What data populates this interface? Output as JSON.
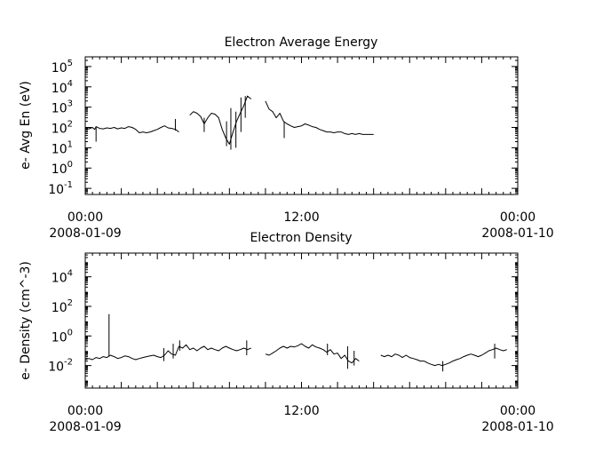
{
  "chart_data": [
    {
      "type": "line",
      "title": "Electron Average Energy",
      "ylabel": "e- Avg En (eV)",
      "xlabel": "",
      "yscale": "log",
      "ylim": [
        0.05,
        300000
      ],
      "xlim": [
        "2008-01-09 00:00",
        "2008-01-10 00:00"
      ],
      "grid": false,
      "yticks": [
        {
          "value": 0.1,
          "base": "10",
          "exp": "-1"
        },
        {
          "value": 1,
          "base": "10",
          "exp": "0"
        },
        {
          "value": 10,
          "base": "10",
          "exp": "1"
        },
        {
          "value": 100,
          "base": "10",
          "exp": "2"
        },
        {
          "value": 1000,
          "base": "10",
          "exp": "3"
        },
        {
          "value": 10000,
          "base": "10",
          "exp": "4"
        },
        {
          "value": 100000,
          "base": "10",
          "exp": "5"
        }
      ],
      "xticks": [
        {
          "value": 0,
          "time": "00:00",
          "date": "2008-01-09"
        },
        {
          "value": 12,
          "time": "12:00",
          "date": ""
        },
        {
          "value": 24,
          "time": "00:00",
          "date": "2008-01-10"
        }
      ],
      "series": [
        {
          "segments": [
            [
              [
                0,
                90
              ],
              [
                0.5,
                85
              ],
              [
                1,
                100
              ],
              [
                1.3,
                80
              ],
              [
                1.5,
                110
              ],
              [
                2,
                90
              ],
              [
                2.5,
                85
              ],
              [
                3,
                95
              ],
              [
                3.5,
                90
              ],
              [
                4,
                100
              ],
              [
                4.5,
                85
              ],
              [
                5,
                95
              ],
              [
                5.5,
                90
              ],
              [
                6,
                110
              ],
              [
                6.5,
                100
              ],
              [
                7,
                80
              ],
              [
                7.5,
                55
              ],
              [
                8,
                60
              ],
              [
                8.5,
                55
              ],
              [
                9,
                60
              ],
              [
                9.5,
                70
              ],
              [
                10,
                80
              ],
              [
                10.5,
                100
              ],
              [
                11,
                120
              ],
              [
                11.5,
                95
              ],
              [
                12,
                90
              ],
              [
                12.5,
                80
              ],
              [
                13,
                60
              ]
            ],
            [
              [
                14.5,
                400
              ],
              [
                15,
                600
              ],
              [
                15.5,
                500
              ],
              [
                16,
                350
              ],
              [
                16.5,
                150
              ],
              [
                17,
                300
              ],
              [
                17.5,
                500
              ],
              [
                18,
                450
              ],
              [
                18.5,
                300
              ],
              [
                19,
                80
              ],
              [
                19.5,
                30
              ],
              [
                20,
                15
              ],
              [
                20.5,
                60
              ],
              [
                21,
                200
              ],
              [
                21.5,
                500
              ],
              [
                22,
                1200
              ],
              [
                22.5,
                3500
              ],
              [
                23,
                2500
              ]
            ],
            [
              [
                25,
                2000
              ],
              [
                25.5,
                800
              ],
              [
                26,
                600
              ],
              [
                26.5,
                300
              ],
              [
                27,
                500
              ],
              [
                27.5,
                200
              ],
              [
                28,
                150
              ],
              [
                28.5,
                120
              ],
              [
                29,
                100
              ],
              [
                29.5,
                110
              ],
              [
                30,
                120
              ],
              [
                30.5,
                150
              ],
              [
                31,
                130
              ],
              [
                31.5,
                110
              ],
              [
                32,
                100
              ],
              [
                32.5,
                80
              ],
              [
                33,
                70
              ],
              [
                33.5,
                60
              ],
              [
                34,
                60
              ],
              [
                34.5,
                55
              ],
              [
                35,
                60
              ],
              [
                35.5,
                60
              ],
              [
                36,
                50
              ],
              [
                36.5,
                45
              ],
              [
                37,
                50
              ],
              [
                37.5,
                45
              ],
              [
                38,
                50
              ],
              [
                38.5,
                45
              ],
              [
                39,
                45
              ],
              [
                39.5,
                45
              ],
              [
                40,
                45
              ]
            ]
          ],
          "spikes": [
            {
              "x": 1.5,
              "low": 20,
              "high": 110
            },
            {
              "x": 12.5,
              "low": 70,
              "high": 260
            },
            {
              "x": 16.5,
              "low": 60,
              "high": 300
            },
            {
              "x": 19.6,
              "low": 12,
              "high": 200
            },
            {
              "x": 20.2,
              "low": 8,
              "high": 900
            },
            {
              "x": 20.9,
              "low": 10,
              "high": 600
            },
            {
              "x": 21.6,
              "low": 60,
              "high": 3000
            },
            {
              "x": 22.2,
              "low": 300,
              "high": 3500
            },
            {
              "x": 27.6,
              "low": 30,
              "high": 200
            }
          ]
        }
      ]
    },
    {
      "type": "line",
      "title": "Electron Density",
      "ylabel": "e- Density (cm^-3)",
      "xlabel": "",
      "yscale": "log",
      "ylim": [
        0.0003,
        400000
      ],
      "xlim": [
        "2008-01-09 00:00",
        "2008-01-10 00:00"
      ],
      "grid": false,
      "yticks": [
        {
          "value": 0.01,
          "base": "10",
          "exp": "-2"
        },
        {
          "value": 1,
          "base": "10",
          "exp": "0"
        },
        {
          "value": 100,
          "base": "10",
          "exp": "2"
        },
        {
          "value": 10000,
          "base": "10",
          "exp": "4"
        }
      ],
      "xticks": [
        {
          "value": 0,
          "time": "00:00",
          "date": "2008-01-09"
        },
        {
          "value": 12,
          "time": "12:00",
          "date": ""
        },
        {
          "value": 24,
          "time": "00:00",
          "date": "2008-01-10"
        }
      ],
      "series": [
        {
          "segments": [
            [
              [
                0,
                0.025
              ],
              [
                0.5,
                0.03
              ],
              [
                1,
                0.025
              ],
              [
                1.5,
                0.035
              ],
              [
                2,
                0.03
              ],
              [
                2.5,
                0.04
              ],
              [
                3,
                0.035
              ],
              [
                3.5,
                0.05
              ],
              [
                4,
                0.04
              ],
              [
                4.5,
                0.03
              ],
              [
                5,
                0.035
              ],
              [
                5.5,
                0.045
              ],
              [
                6,
                0.04
              ],
              [
                6.5,
                0.03
              ],
              [
                7,
                0.025
              ],
              [
                7.5,
                0.03
              ],
              [
                8,
                0.035
              ],
              [
                8.5,
                0.04
              ],
              [
                9,
                0.045
              ],
              [
                9.5,
                0.05
              ],
              [
                10,
                0.04
              ],
              [
                10.5,
                0.035
              ],
              [
                11,
                0.05
              ],
              [
                11.5,
                0.1
              ],
              [
                12,
                0.06
              ],
              [
                12.5,
                0.05
              ],
              [
                13,
                0.2
              ],
              [
                13.5,
                0.15
              ],
              [
                14,
                0.25
              ],
              [
                14.5,
                0.12
              ],
              [
                15,
                0.15
              ],
              [
                15.5,
                0.1
              ],
              [
                16,
                0.15
              ],
              [
                16.5,
                0.2
              ],
              [
                17,
                0.12
              ],
              [
                17.5,
                0.15
              ],
              [
                18,
                0.12
              ],
              [
                18.5,
                0.1
              ],
              [
                19,
                0.15
              ],
              [
                19.5,
                0.2
              ],
              [
                20,
                0.15
              ],
              [
                20.5,
                0.12
              ],
              [
                21,
                0.1
              ],
              [
                21.5,
                0.12
              ],
              [
                22,
                0.15
              ],
              [
                22.5,
                0.12
              ],
              [
                23,
                0.15
              ]
            ],
            [
              [
                25,
                0.06
              ],
              [
                25.5,
                0.05
              ],
              [
                26,
                0.07
              ],
              [
                26.5,
                0.1
              ],
              [
                27,
                0.15
              ],
              [
                27.5,
                0.2
              ],
              [
                28,
                0.15
              ],
              [
                28.5,
                0.2
              ],
              [
                29,
                0.18
              ],
              [
                29.5,
                0.22
              ],
              [
                30,
                0.3
              ],
              [
                30.5,
                0.2
              ],
              [
                31,
                0.15
              ],
              [
                31.5,
                0.25
              ],
              [
                32,
                0.18
              ],
              [
                32.5,
                0.15
              ],
              [
                33,
                0.12
              ],
              [
                33.5,
                0.08
              ],
              [
                34,
                0.12
              ],
              [
                34.5,
                0.06
              ],
              [
                35,
                0.07
              ],
              [
                35.5,
                0.03
              ],
              [
                36,
                0.05
              ],
              [
                36.5,
                0.02
              ],
              [
                37,
                0.015
              ],
              [
                37.5,
                0.03
              ],
              [
                38,
                0.02
              ]
            ],
            [
              [
                41,
                0.05
              ],
              [
                41.5,
                0.04
              ],
              [
                42,
                0.05
              ],
              [
                42.5,
                0.04
              ],
              [
                43,
                0.06
              ],
              [
                43.5,
                0.05
              ],
              [
                44,
                0.035
              ],
              [
                44.5,
                0.05
              ],
              [
                45,
                0.035
              ],
              [
                45.5,
                0.03
              ],
              [
                46,
                0.025
              ],
              [
                46.5,
                0.02
              ],
              [
                47,
                0.02
              ],
              [
                47.5,
                0.015
              ],
              [
                48,
                0.012
              ],
              [
                48.5,
                0.01
              ],
              [
                49,
                0.012
              ],
              [
                49.5,
                0.01
              ],
              [
                50,
                0.012
              ],
              [
                50.5,
                0.015
              ],
              [
                51,
                0.02
              ],
              [
                51.5,
                0.025
              ],
              [
                52,
                0.03
              ],
              [
                52.5,
                0.04
              ],
              [
                53,
                0.05
              ],
              [
                53.5,
                0.06
              ],
              [
                54,
                0.05
              ],
              [
                54.5,
                0.04
              ],
              [
                55,
                0.05
              ],
              [
                55.5,
                0.07
              ],
              [
                56,
                0.1
              ],
              [
                56.5,
                0.12
              ],
              [
                57,
                0.15
              ],
              [
                57.5,
                0.12
              ],
              [
                58,
                0.1
              ],
              [
                58.5,
                0.12
              ]
            ]
          ],
          "spikes": [
            {
              "x": 3.3,
              "low": 0.04,
              "high": 30
            },
            {
              "x": 10.9,
              "low": 0.02,
              "high": 0.15
            },
            {
              "x": 12.2,
              "low": 0.03,
              "high": 0.3
            },
            {
              "x": 13.1,
              "low": 0.1,
              "high": 0.5
            },
            {
              "x": 22.4,
              "low": 0.05,
              "high": 0.5
            },
            {
              "x": 33.6,
              "low": 0.05,
              "high": 0.3
            },
            {
              "x": 36.4,
              "low": 0.006,
              "high": 0.2
            },
            {
              "x": 37.3,
              "low": 0.01,
              "high": 0.1
            },
            {
              "x": 49.6,
              "low": 0.004,
              "high": 0.02
            },
            {
              "x": 56.8,
              "low": 0.03,
              "high": 0.3
            }
          ]
        }
      ]
    }
  ]
}
